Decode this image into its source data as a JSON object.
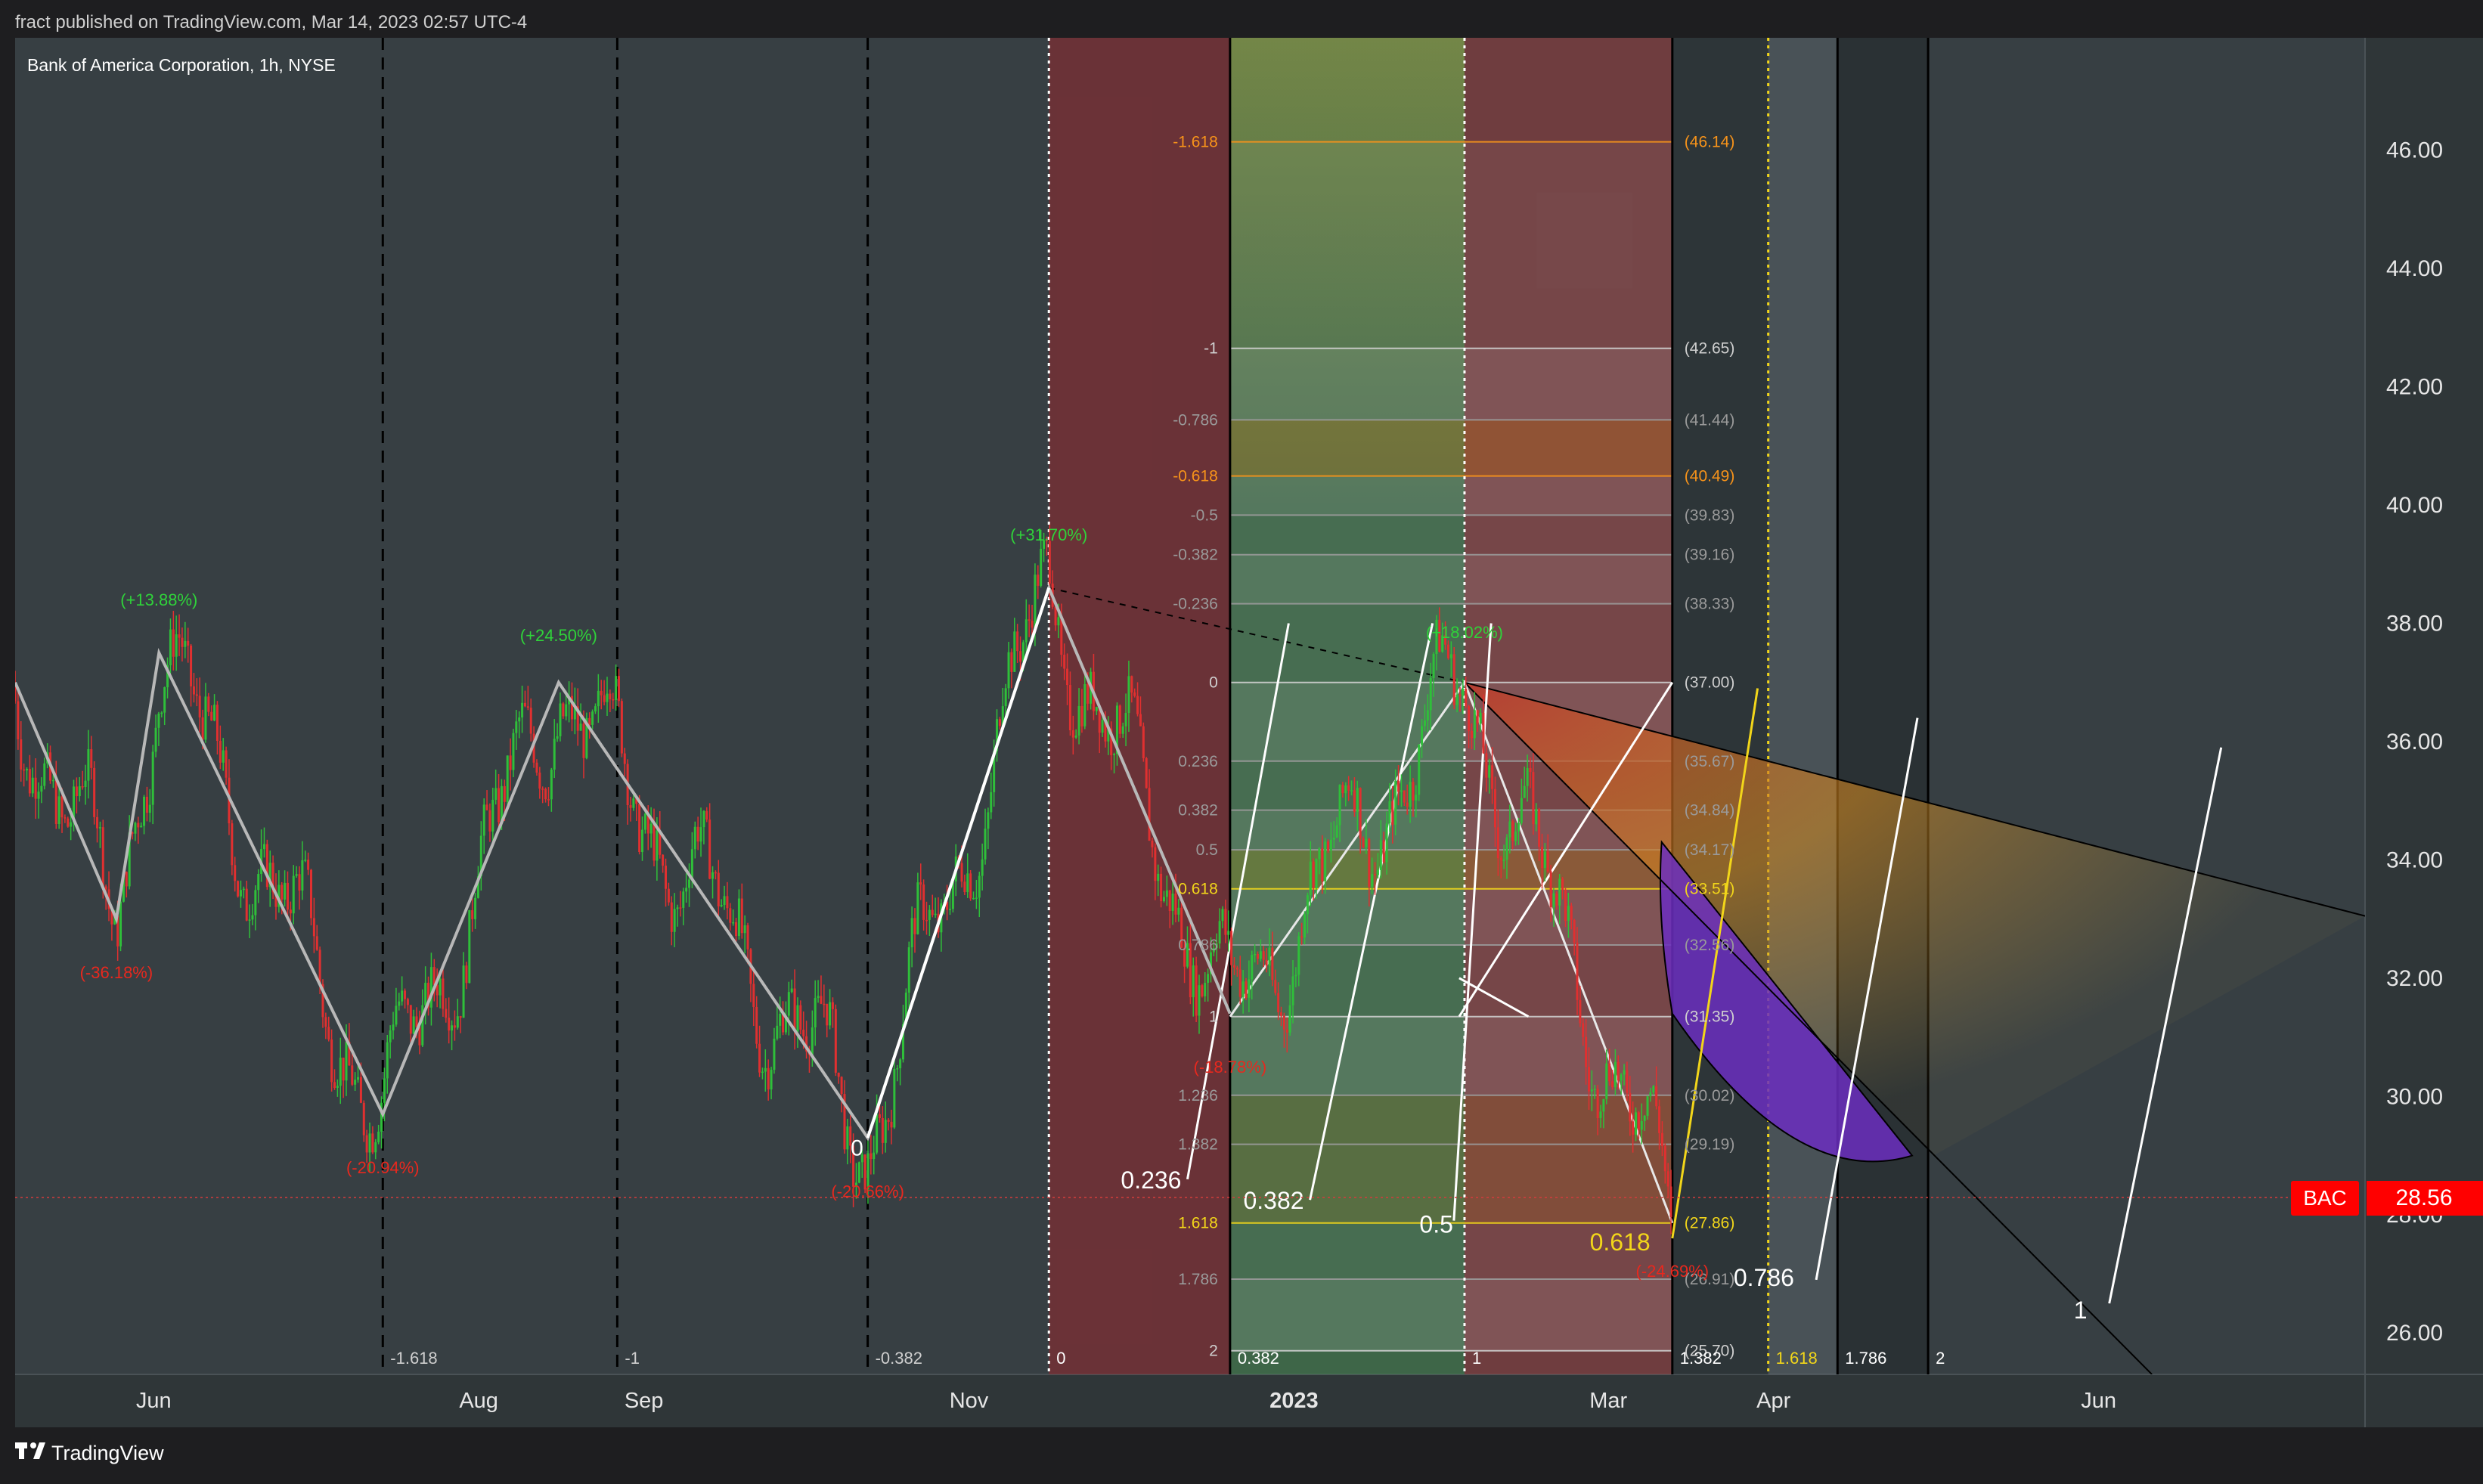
{
  "header": {
    "published_text": "fract published on TradingView.com, Mar 14, 2023 02:57 UTC-4",
    "symbol_title": "Bank of America Corporation, 1h, NYSE"
  },
  "footer": {
    "brand": "TradingView"
  },
  "colors": {
    "page_bg": "#1e1e20",
    "chart_bg": "#373f43",
    "up_candle": "#2fbf3a",
    "down_candle": "#e03030",
    "fib_orange": "#f7931a",
    "fib_yellow": "#f2d61a",
    "bac_badge": "#ff0000",
    "zigzag": "#b8b8b8",
    "arc_purple": "#6b2ec0"
  },
  "price_tag": {
    "symbol": "BAC",
    "price": "28.56"
  },
  "chart_data": {
    "type": "candlestick",
    "title": "Bank of America Corporation, 1h, NYSE",
    "ylim": [
      25.3,
      47.9
    ],
    "y_ticks": [
      "46.00",
      "44.00",
      "42.00",
      "40.00",
      "38.00",
      "36.00",
      "34.00",
      "32.00",
      "30.00",
      "28.00",
      "26.00"
    ],
    "x_axis": {
      "start": "2022-05-06",
      "end": "2023-07-21"
    },
    "x_ticks": [
      {
        "date": "2022-06-01",
        "label": "Jun",
        "bold": false
      },
      {
        "date": "2022-08-01",
        "label": "Aug",
        "bold": false
      },
      {
        "date": "2022-09-01",
        "label": "Sep",
        "bold": false
      },
      {
        "date": "2022-11-01",
        "label": "Nov",
        "bold": false
      },
      {
        "date": "2023-01-01",
        "label": "2023",
        "bold": true
      },
      {
        "date": "2023-03-01",
        "label": "Mar",
        "bold": false
      },
      {
        "date": "2023-04-01",
        "label": "Apr",
        "bold": false
      },
      {
        "date": "2023-06-01",
        "label": "Jun",
        "bold": false
      }
    ],
    "zigzag": [
      {
        "date": "2022-05-06",
        "price": 37.0
      },
      {
        "date": "2022-05-25",
        "price": 33.0
      },
      {
        "date": "2022-06-02",
        "price": 37.5
      },
      {
        "date": "2022-07-14",
        "price": 29.7
      },
      {
        "date": "2022-08-16",
        "price": 37.0
      },
      {
        "date": "2022-10-13",
        "price": 29.3
      },
      {
        "date": "2022-11-16",
        "price": 38.6
      },
      {
        "date": "2022-12-20",
        "price": 31.4
      },
      {
        "date": "2023-02-02",
        "price": 37.0
      },
      {
        "date": "2023-03-13",
        "price": 27.86
      }
    ],
    "swing_labels": [
      {
        "date": "2022-06-02",
        "price": 38.3,
        "text": "(+13.88%)",
        "dir": "up"
      },
      {
        "date": "2022-05-25",
        "price": 32.0,
        "text": "(-36.18%)",
        "dir": "down"
      },
      {
        "date": "2022-08-16",
        "price": 37.7,
        "text": "(+24.50%)",
        "dir": "up"
      },
      {
        "date": "2022-07-14",
        "price": 28.7,
        "text": "(-20.94%)",
        "dir": "down"
      },
      {
        "date": "2022-11-16",
        "price": 39.4,
        "text": "(+31.70%)",
        "dir": "up"
      },
      {
        "date": "2022-10-13",
        "price": 28.3,
        "text": "(-20.66%)",
        "dir": "down"
      },
      {
        "date": "2023-02-02",
        "price": 37.75,
        "text": "(+18.02%)",
        "dir": "up"
      },
      {
        "date": "2022-12-20",
        "price": 30.4,
        "text": "(-18.78%)",
        "dir": "down"
      },
      {
        "date": "2023-03-13",
        "price": 26.95,
        "text": "(-24.69%)",
        "dir": "down"
      }
    ],
    "fib_retracement": {
      "left_date": "2022-11-16",
      "right_date": "2023-03-13",
      "anchor_date": "2022-12-20",
      "levels": [
        {
          "ratio": "-1.618",
          "price": 46.14,
          "price_label": "(46.14)",
          "color": "#f7931a"
        },
        {
          "ratio": "-1",
          "price": 42.65,
          "price_label": "(42.65)",
          "color": "#cfcfcf"
        },
        {
          "ratio": "-0.786",
          "price": 41.44,
          "price_label": "(41.44)",
          "color": "#9a9a9a"
        },
        {
          "ratio": "-0.618",
          "price": 40.49,
          "price_label": "(40.49)",
          "color": "#f7931a"
        },
        {
          "ratio": "-0.5",
          "price": 39.83,
          "price_label": "(39.83)",
          "color": "#9a9a9a"
        },
        {
          "ratio": "-0.382",
          "price": 39.16,
          "price_label": "(39.16)",
          "color": "#9a9a9a"
        },
        {
          "ratio": "-0.236",
          "price": 38.33,
          "price_label": "(38.33)",
          "color": "#9a9a9a"
        },
        {
          "ratio": "0",
          "price": 37.0,
          "price_label": "(37.00)",
          "color": "#cfcfcf"
        },
        {
          "ratio": "0.236",
          "price": 35.67,
          "price_label": "(35.67)",
          "color": "#9a9a9a"
        },
        {
          "ratio": "0.382",
          "price": 34.84,
          "price_label": "(34.84)",
          "color": "#9a9a9a"
        },
        {
          "ratio": "0.5",
          "price": 34.17,
          "price_label": "(34.17)",
          "color": "#9a9a9a"
        },
        {
          "ratio": "0.618",
          "price": 33.51,
          "price_label": "(33.51)",
          "color": "#f2d61a"
        },
        {
          "ratio": "0.786",
          "price": 32.56,
          "price_label": "(32.56)",
          "color": "#9a9a9a"
        },
        {
          "ratio": "1",
          "price": 31.35,
          "price_label": "(31.35)",
          "color": "#cfcfcf"
        },
        {
          "ratio": "1.236",
          "price": 30.02,
          "price_label": "(30.02)",
          "color": "#9a9a9a"
        },
        {
          "ratio": "1.382",
          "price": 29.19,
          "price_label": "(29.19)",
          "color": "#9a9a9a"
        },
        {
          "ratio": "1.618",
          "price": 27.86,
          "price_label": "(27.86)",
          "color": "#f2d61a"
        },
        {
          "ratio": "1.786",
          "price": 26.91,
          "price_label": "(26.91)",
          "color": "#9a9a9a"
        },
        {
          "ratio": "2",
          "price": 25.7,
          "price_label": "(25.70)",
          "color": "#cfcfcf"
        }
      ]
    },
    "time_zones": [
      {
        "date": "2022-11-16",
        "end": "2022-12-20",
        "color": "rgba(150,40,45,0.55)"
      },
      {
        "date": "2022-12-20",
        "end": "2023-02-02",
        "color": "rgba(70,150,80,0.45)"
      },
      {
        "date": "2023-02-02",
        "end": "2023-03-13",
        "color": "rgba(180,60,60,0.45)"
      }
    ],
    "time_fib_lines": [
      {
        "date": "2022-07-14",
        "label": "-1.618",
        "style": "dashed"
      },
      {
        "date": "2022-08-27",
        "label": "-1",
        "style": "dashed"
      },
      {
        "date": "2022-10-13",
        "label": "-0.382",
        "style": "dashed"
      },
      {
        "date": "2022-11-16",
        "label": "0",
        "style": "dotted"
      },
      {
        "date": "2022-12-20",
        "label": "0.382",
        "style": "solid"
      },
      {
        "date": "2023-02-02",
        "label": "1",
        "style": "dotted"
      },
      {
        "date": "2023-03-13",
        "label": "1.382",
        "style": "solid"
      },
      {
        "date": "2023-03-31",
        "label": "1.618",
        "style": "dotted-yellow"
      },
      {
        "date": "2023-04-13",
        "label": "1.786",
        "style": "solid"
      },
      {
        "date": "2023-04-30",
        "label": "2",
        "style": "solid"
      }
    ],
    "fan_labels": [
      {
        "date": "2022-12-12",
        "price": 28.6,
        "text": "0.236",
        "color": "#ffffff"
      },
      {
        "date": "2023-01-04",
        "price": 28.25,
        "text": "0.382",
        "color": "#ffffff"
      },
      {
        "date": "2023-02-01",
        "price": 27.85,
        "text": "0.5",
        "color": "#ffffff"
      },
      {
        "date": "2023-03-10",
        "price": 27.55,
        "text": "0.618",
        "color": "#f2d61a"
      },
      {
        "date": "2023-04-06",
        "price": 26.95,
        "text": "0.786",
        "color": "#ffffff"
      },
      {
        "date": "2023-05-31",
        "price": 26.4,
        "text": "1",
        "color": "#ffffff"
      }
    ],
    "zigzag_point_labels": [
      {
        "date": "2022-10-11",
        "price": 29.0,
        "text": "0"
      }
    ]
  }
}
